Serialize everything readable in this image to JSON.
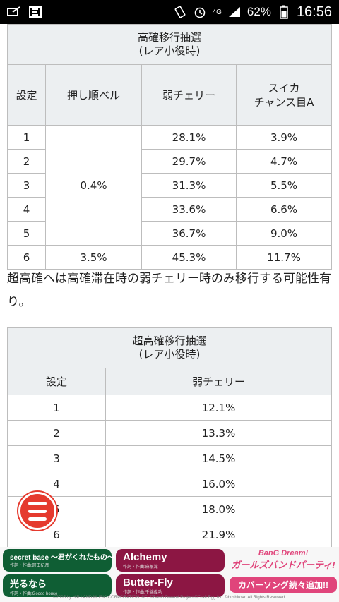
{
  "status_bar": {
    "network": "4G",
    "battery": "62%",
    "time": "16:56"
  },
  "table1": {
    "caption_line1": "高確移行抽選",
    "caption_line2": "(レア小役時)",
    "headers": [
      "設定",
      "押し順ベル",
      "弱チェリー",
      "スイカ\nチャンス目A"
    ],
    "header_col4_line1": "スイカ",
    "header_col4_line2": "チャンス目A",
    "merged_bell": "0.4%",
    "rows": [
      {
        "setting": "1",
        "cherry": "28.1%",
        "suika": "3.9%"
      },
      {
        "setting": "2",
        "cherry": "29.7%",
        "suika": "4.7%"
      },
      {
        "setting": "3",
        "cherry": "31.3%",
        "suika": "5.5%"
      },
      {
        "setting": "4",
        "cherry": "33.6%",
        "suika": "6.6%"
      },
      {
        "setting": "5",
        "cherry": "36.7%",
        "suika": "9.0%"
      }
    ],
    "last_row": {
      "setting": "6",
      "bell": "3.5%",
      "cherry": "45.3%",
      "suika": "11.7%"
    }
  },
  "note": "超高確へは高確滞在時の弱チェリー時のみ移行する可能性有り。",
  "table2": {
    "caption_line1": "超高確移行抽選",
    "caption_line2": "(レア小役時)",
    "headers": [
      "設定",
      "弱チェリー"
    ],
    "rows": [
      {
        "setting": "1",
        "cherry": "12.1%"
      },
      {
        "setting": "2",
        "cherry": "13.3%"
      },
      {
        "setting": "3",
        "cherry": "14.5%"
      },
      {
        "setting": "4",
        "cherry": "16.0%"
      },
      {
        "setting": "5",
        "cherry": "18.0%"
      },
      {
        "setting": "6",
        "cherry": "21.9%"
      }
    ]
  },
  "ad": {
    "song1_title": "secret base 〜君がくれたもの〜",
    "song1_credit": "作詞・作曲:町田紀彦",
    "song2_title": "光るなら",
    "song2_credit": "作詞・作曲:Goose house",
    "song3_title": "Alchemy",
    "song3_credit": "作詞・作曲:麻根滝",
    "song4_title": "Butter-Fly",
    "song4_credit": "作詞・作曲:千綿偉功",
    "brand_line1": "BanG Dream!",
    "brand_line2": "ガールズバンドパーティ!",
    "brand_tagline": "カバーソング続々追加!!",
    "copyright": "©2005 by HIP LAND MUSIC CORPORATION INC. ©BanG Dream! Project ©Craft Egg Inc. ©bushiroad All Rights Reserved."
  },
  "colors": {
    "header_bg": "#eceff1",
    "fab": "#e53a2e"
  }
}
